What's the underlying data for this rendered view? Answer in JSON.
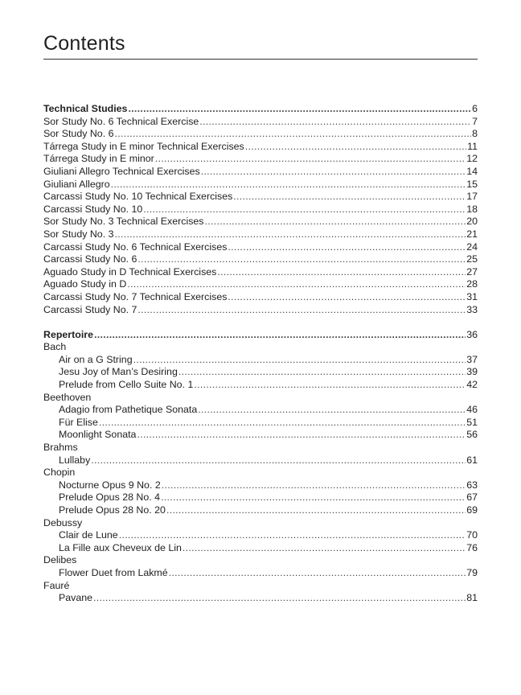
{
  "title": "Contents",
  "sections": [
    {
      "heading": {
        "label": "Technical Studies",
        "page": "6"
      },
      "entries": [
        {
          "label": "Sor Study No. 6 Technical Exercise",
          "page": "7"
        },
        {
          "label": "Sor Study No. 6",
          "page": "8"
        },
        {
          "label": "Tárrega Study in E minor Technical Exercises",
          "page": "11"
        },
        {
          "label": "Tárrega Study in E minor",
          "page": "12"
        },
        {
          "label": "Giuliani Allegro Technical Exercises",
          "page": "14"
        },
        {
          "label": "Giuliani Allegro",
          "page": "15"
        },
        {
          "label": "Carcassi Study No. 10 Technical Exercises",
          "page": "17"
        },
        {
          "label": "Carcassi Study No. 10",
          "page": "18"
        },
        {
          "label": "Sor Study No. 3 Technical Exercises",
          "page": "20"
        },
        {
          "label": "Sor Study No. 3",
          "page": "21"
        },
        {
          "label": "Carcassi Study No. 6 Technical Exercises",
          "page": "24"
        },
        {
          "label": "Carcassi Study No. 6",
          "page": "25"
        },
        {
          "label": "Aguado Study in D Technical Exercises",
          "page": "27"
        },
        {
          "label": "Aguado Study in D",
          "page": "28"
        },
        {
          "label": "Carcassi Study No. 7 Technical Exercises",
          "page": "31"
        },
        {
          "label": "Carcassi Study No. 7",
          "page": "33"
        }
      ]
    },
    {
      "heading": {
        "label": "Repertoire",
        "page": "36"
      },
      "composers": [
        {
          "name": "Bach",
          "pieces": [
            {
              "label": "Air on a G String",
              "page": "37"
            },
            {
              "label": "Jesu Joy of Man’s Desiring",
              "page": "39"
            },
            {
              "label": "Prelude from Cello Suite No. 1",
              "page": "42"
            }
          ]
        },
        {
          "name": "Beethoven",
          "pieces": [
            {
              "label": "Adagio from Pathetique Sonata",
              "page": "46"
            },
            {
              "label": "Für Elise",
              "page": "51"
            },
            {
              "label": "Moonlight Sonata",
              "page": "56"
            }
          ]
        },
        {
          "name": "Brahms",
          "pieces": [
            {
              "label": "Lullaby",
              "page": "61"
            }
          ]
        },
        {
          "name": "Chopin",
          "pieces": [
            {
              "label": "Nocturne Opus 9 No. 2",
              "page": "63"
            },
            {
              "label": "Prelude Opus 28 No. 4",
              "page": "67"
            },
            {
              "label": "Prelude Opus 28 No. 20",
              "page": "69"
            }
          ]
        },
        {
          "name": "Debussy",
          "pieces": [
            {
              "label": "Clair de Lune",
              "page": "70"
            },
            {
              "label": "La Fille aux Cheveux de Lin",
              "page": "76"
            }
          ]
        },
        {
          "name": "Delibes",
          "pieces": [
            {
              "label": "Flower Duet from Lakmé",
              "page": "79"
            }
          ]
        },
        {
          "name": "Fauré",
          "pieces": [
            {
              "label": "Pavane",
              "page": "81"
            }
          ]
        }
      ]
    }
  ]
}
